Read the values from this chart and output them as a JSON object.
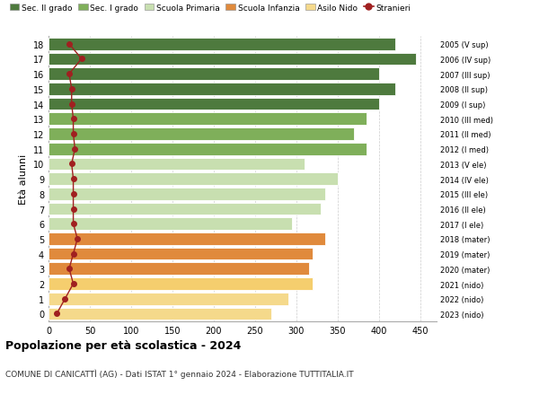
{
  "ages": [
    0,
    1,
    2,
    3,
    4,
    5,
    6,
    7,
    8,
    9,
    10,
    11,
    12,
    13,
    14,
    15,
    16,
    17,
    18
  ],
  "bar_values": [
    270,
    290,
    320,
    315,
    320,
    335,
    295,
    330,
    335,
    350,
    310,
    385,
    370,
    385,
    400,
    420,
    400,
    445,
    420
  ],
  "stranieri_values": [
    10,
    20,
    30,
    25,
    30,
    35,
    30,
    30,
    30,
    30,
    28,
    32,
    30,
    30,
    28,
    28,
    25,
    40,
    25
  ],
  "right_labels": [
    "2023 (nido)",
    "2022 (nido)",
    "2021 (nido)",
    "2020 (mater)",
    "2019 (mater)",
    "2018 (mater)",
    "2017 (I ele)",
    "2016 (II ele)",
    "2015 (III ele)",
    "2014 (IV ele)",
    "2013 (V ele)",
    "2012 (I med)",
    "2011 (II med)",
    "2010 (III med)",
    "2009 (I sup)",
    "2008 (II sup)",
    "2007 (III sup)",
    "2006 (IV sup)",
    "2005 (V sup)"
  ],
  "bar_colors": [
    "#F5D98B",
    "#F5D98B",
    "#F5CE6E",
    "#E08A3C",
    "#E08A3C",
    "#E08A3C",
    "#C8DFB0",
    "#C8DFB0",
    "#C8DFB0",
    "#C8DFB0",
    "#C8DFB0",
    "#7FAF5A",
    "#7FAF5A",
    "#7FAF5A",
    "#4E7A3E",
    "#4E7A3E",
    "#4E7A3E",
    "#4E7A3E",
    "#4E7A3E"
  ],
  "legend_labels": [
    "Sec. II grado",
    "Sec. I grado",
    "Scuola Primaria",
    "Scuola Infanzia",
    "Asilo Nido",
    "Stranieri"
  ],
  "legend_colors": [
    "#4E7A3E",
    "#7FAF5A",
    "#C8DFB0",
    "#E08A3C",
    "#F5D98B",
    "#A02020"
  ],
  "ylabel": "Età alunni",
  "title": "Popolazione per età scolastica - 2024",
  "subtitle": "COMUNE DI CANICATTÌ (AG) - Dati ISTAT 1° gennaio 2024 - Elaborazione TUTTITALIA.IT",
  "xlim": [
    0,
    470
  ],
  "xticks": [
    0,
    50,
    100,
    150,
    200,
    250,
    300,
    350,
    400,
    450
  ],
  "stranieri_color": "#A02020",
  "background_color": "#ffffff",
  "grid_color": "#cccccc"
}
